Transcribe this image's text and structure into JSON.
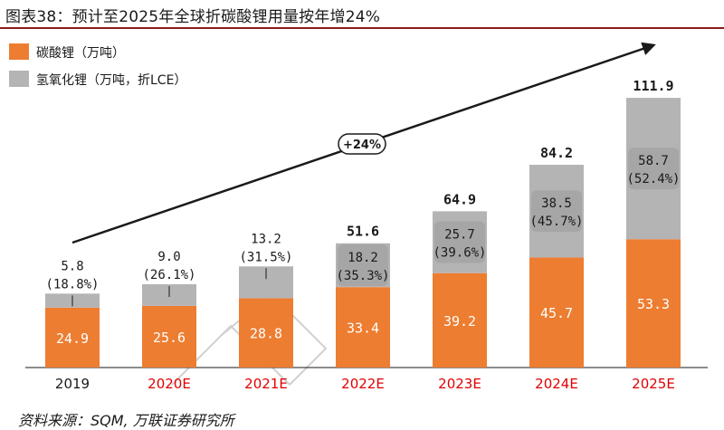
{
  "header": {
    "title": "图表38：预计至2025年全球折碳酸锂用量按年增24%"
  },
  "footer": {
    "source": "资料来源：SQM, 万联证券研究所"
  },
  "colors": {
    "carbonate": "#ed7d31",
    "hydroxide": "#b4b4b4",
    "hydroxide_box": "#a6a6a6",
    "actual_tick": "#1a1a1a",
    "estimate_tick": "#e00000",
    "title_rule": "#8b1a1a"
  },
  "chart_data": {
    "type": "bar",
    "stacked": true,
    "categories": [
      "2019",
      "2020E",
      "2021E",
      "2022E",
      "2023E",
      "2024E",
      "2025E"
    ],
    "estimate_flags": [
      false,
      true,
      true,
      true,
      true,
      true,
      true
    ],
    "series": [
      {
        "name": "碳酸锂（万吨）",
        "values": [
          24.9,
          25.6,
          28.8,
          33.4,
          39.2,
          45.7,
          53.3
        ],
        "labels": [
          "24.9",
          "25.6",
          "28.8",
          "33.4",
          "39.2",
          "45.7",
          "53.3"
        ]
      },
      {
        "name": "氢氧化锂（万吨，折LCE）",
        "values": [
          5.8,
          9.0,
          13.2,
          18.2,
          25.7,
          38.5,
          58.7
        ],
        "labels": [
          "5.8",
          "9.0",
          "13.2",
          "18.2",
          "25.7",
          "38.5",
          "58.7"
        ],
        "shares": [
          "(18.8%)",
          "(26.1%)",
          "(31.5%)",
          "(35.3%)",
          "(39.6%)",
          "(45.7%)",
          "(52.4%)"
        ]
      }
    ],
    "totals": [
      null,
      null,
      null,
      "51.6",
      "64.9",
      "84.2",
      "111.9"
    ],
    "growth_annotation": "+24%",
    "legend_position": "top-left",
    "ylim": [
      0,
      125
    ],
    "grid": false
  }
}
